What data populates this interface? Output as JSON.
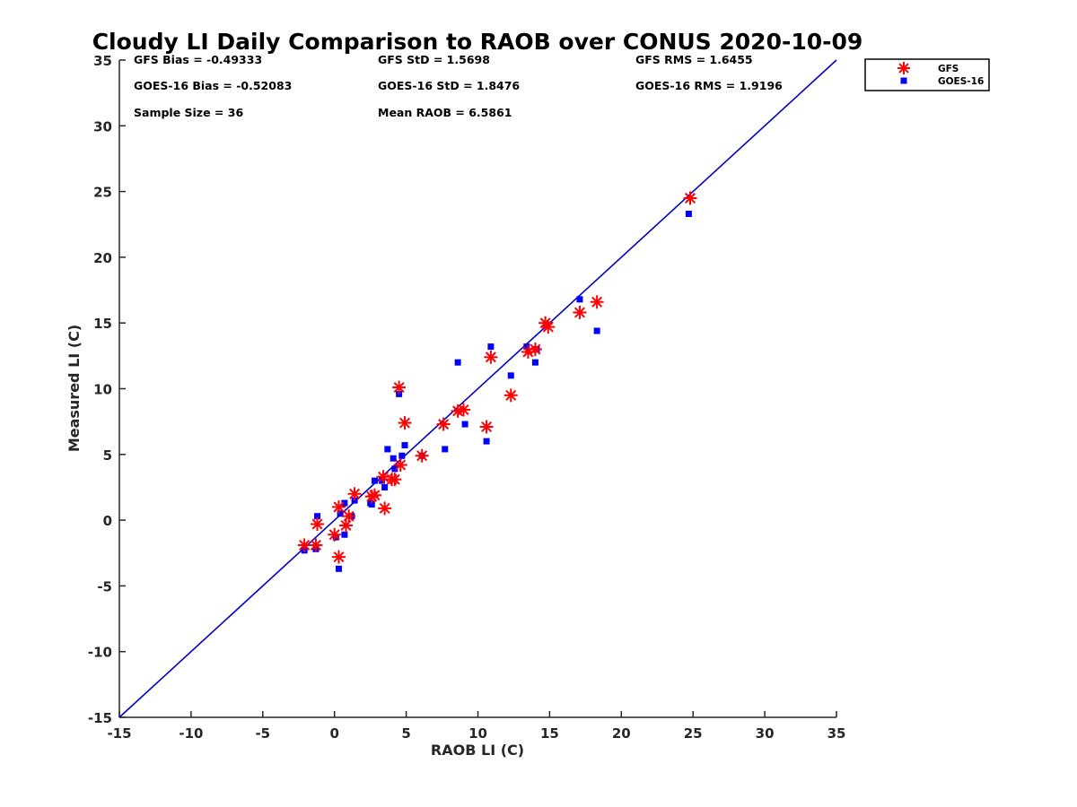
{
  "chart_data": {
    "type": "scatter",
    "title": "Cloudy LI Daily Comparison to RAOB over CONUS 2020-10-09",
    "xlabel": "RAOB LI (C)",
    "ylabel": "Measured LI (C)",
    "xlim": [
      -15,
      35
    ],
    "ylim": [
      -15,
      35
    ],
    "xticks": [
      -15,
      -10,
      -5,
      0,
      5,
      10,
      15,
      20,
      25,
      30,
      35
    ],
    "yticks": [
      -15,
      -10,
      -5,
      0,
      5,
      10,
      15,
      20,
      25,
      30,
      35
    ],
    "grid": false,
    "legend_position": "outside-top-right",
    "reference_line": {
      "from": [
        -15,
        -15
      ],
      "to": [
        35,
        35
      ],
      "color": "#0000cc"
    },
    "stats": [
      "GFS Bias = -0.49333",
      "GFS StD = 1.5698",
      "GFS RMS = 1.6455",
      "GOES-16 Bias = -0.52083",
      "GOES-16 StD = 1.8476",
      "GOES-16 RMS = 1.9196",
      "Sample Size = 36",
      "Mean RAOB = 6.5861"
    ],
    "series": [
      {
        "name": "GFS",
        "marker": "asterisk",
        "color": "#ff0000",
        "points": [
          [
            -2.1,
            -1.9
          ],
          [
            -1.3,
            -1.9
          ],
          [
            -1.2,
            -0.3
          ],
          [
            0.0,
            -1.1
          ],
          [
            0.3,
            -2.8
          ],
          [
            0.3,
            1.0
          ],
          [
            0.8,
            -0.4
          ],
          [
            1.0,
            0.3
          ],
          [
            1.4,
            2.0
          ],
          [
            2.6,
            1.8
          ],
          [
            2.8,
            1.9
          ],
          [
            3.4,
            3.3
          ],
          [
            3.5,
            0.9
          ],
          [
            4.0,
            3.1
          ],
          [
            4.2,
            3.1
          ],
          [
            4.5,
            10.1
          ],
          [
            4.6,
            4.2
          ],
          [
            4.9,
            7.4
          ],
          [
            6.1,
            4.9
          ],
          [
            7.6,
            7.3
          ],
          [
            8.6,
            8.3
          ],
          [
            9.0,
            8.4
          ],
          [
            10.6,
            7.1
          ],
          [
            10.9,
            12.4
          ],
          [
            12.3,
            9.5
          ],
          [
            13.5,
            12.8
          ],
          [
            14.0,
            13.0
          ],
          [
            14.7,
            15.0
          ],
          [
            14.9,
            14.7
          ],
          [
            17.1,
            15.8
          ],
          [
            18.3,
            16.6
          ],
          [
            24.8,
            24.5
          ]
        ]
      },
      {
        "name": "GOES-16",
        "marker": "square",
        "color": "#0000ff",
        "points": [
          [
            -2.1,
            -2.3
          ],
          [
            -1.3,
            -2.2
          ],
          [
            -1.2,
            0.3
          ],
          [
            0.1,
            -1.3
          ],
          [
            0.3,
            -3.7
          ],
          [
            0.4,
            0.5
          ],
          [
            0.7,
            1.3
          ],
          [
            0.7,
            -1.1
          ],
          [
            1.2,
            0.3
          ],
          [
            1.4,
            1.5
          ],
          [
            2.5,
            1.3
          ],
          [
            2.6,
            1.2
          ],
          [
            2.8,
            3.0
          ],
          [
            3.3,
            3.0
          ],
          [
            3.5,
            2.5
          ],
          [
            3.7,
            5.4
          ],
          [
            4.1,
            4.7
          ],
          [
            4.2,
            3.9
          ],
          [
            4.5,
            9.6
          ],
          [
            4.7,
            4.9
          ],
          [
            4.9,
            5.7
          ],
          [
            6.1,
            4.9
          ],
          [
            7.7,
            5.4
          ],
          [
            8.6,
            12.0
          ],
          [
            9.1,
            7.3
          ],
          [
            10.6,
            6.0
          ],
          [
            10.9,
            13.2
          ],
          [
            12.3,
            11.0
          ],
          [
            13.4,
            13.2
          ],
          [
            14.0,
            12.0
          ],
          [
            14.1,
            13.0
          ],
          [
            14.8,
            14.8
          ],
          [
            17.1,
            16.8
          ],
          [
            18.3,
            14.4
          ],
          [
            24.7,
            23.3
          ]
        ]
      }
    ]
  }
}
